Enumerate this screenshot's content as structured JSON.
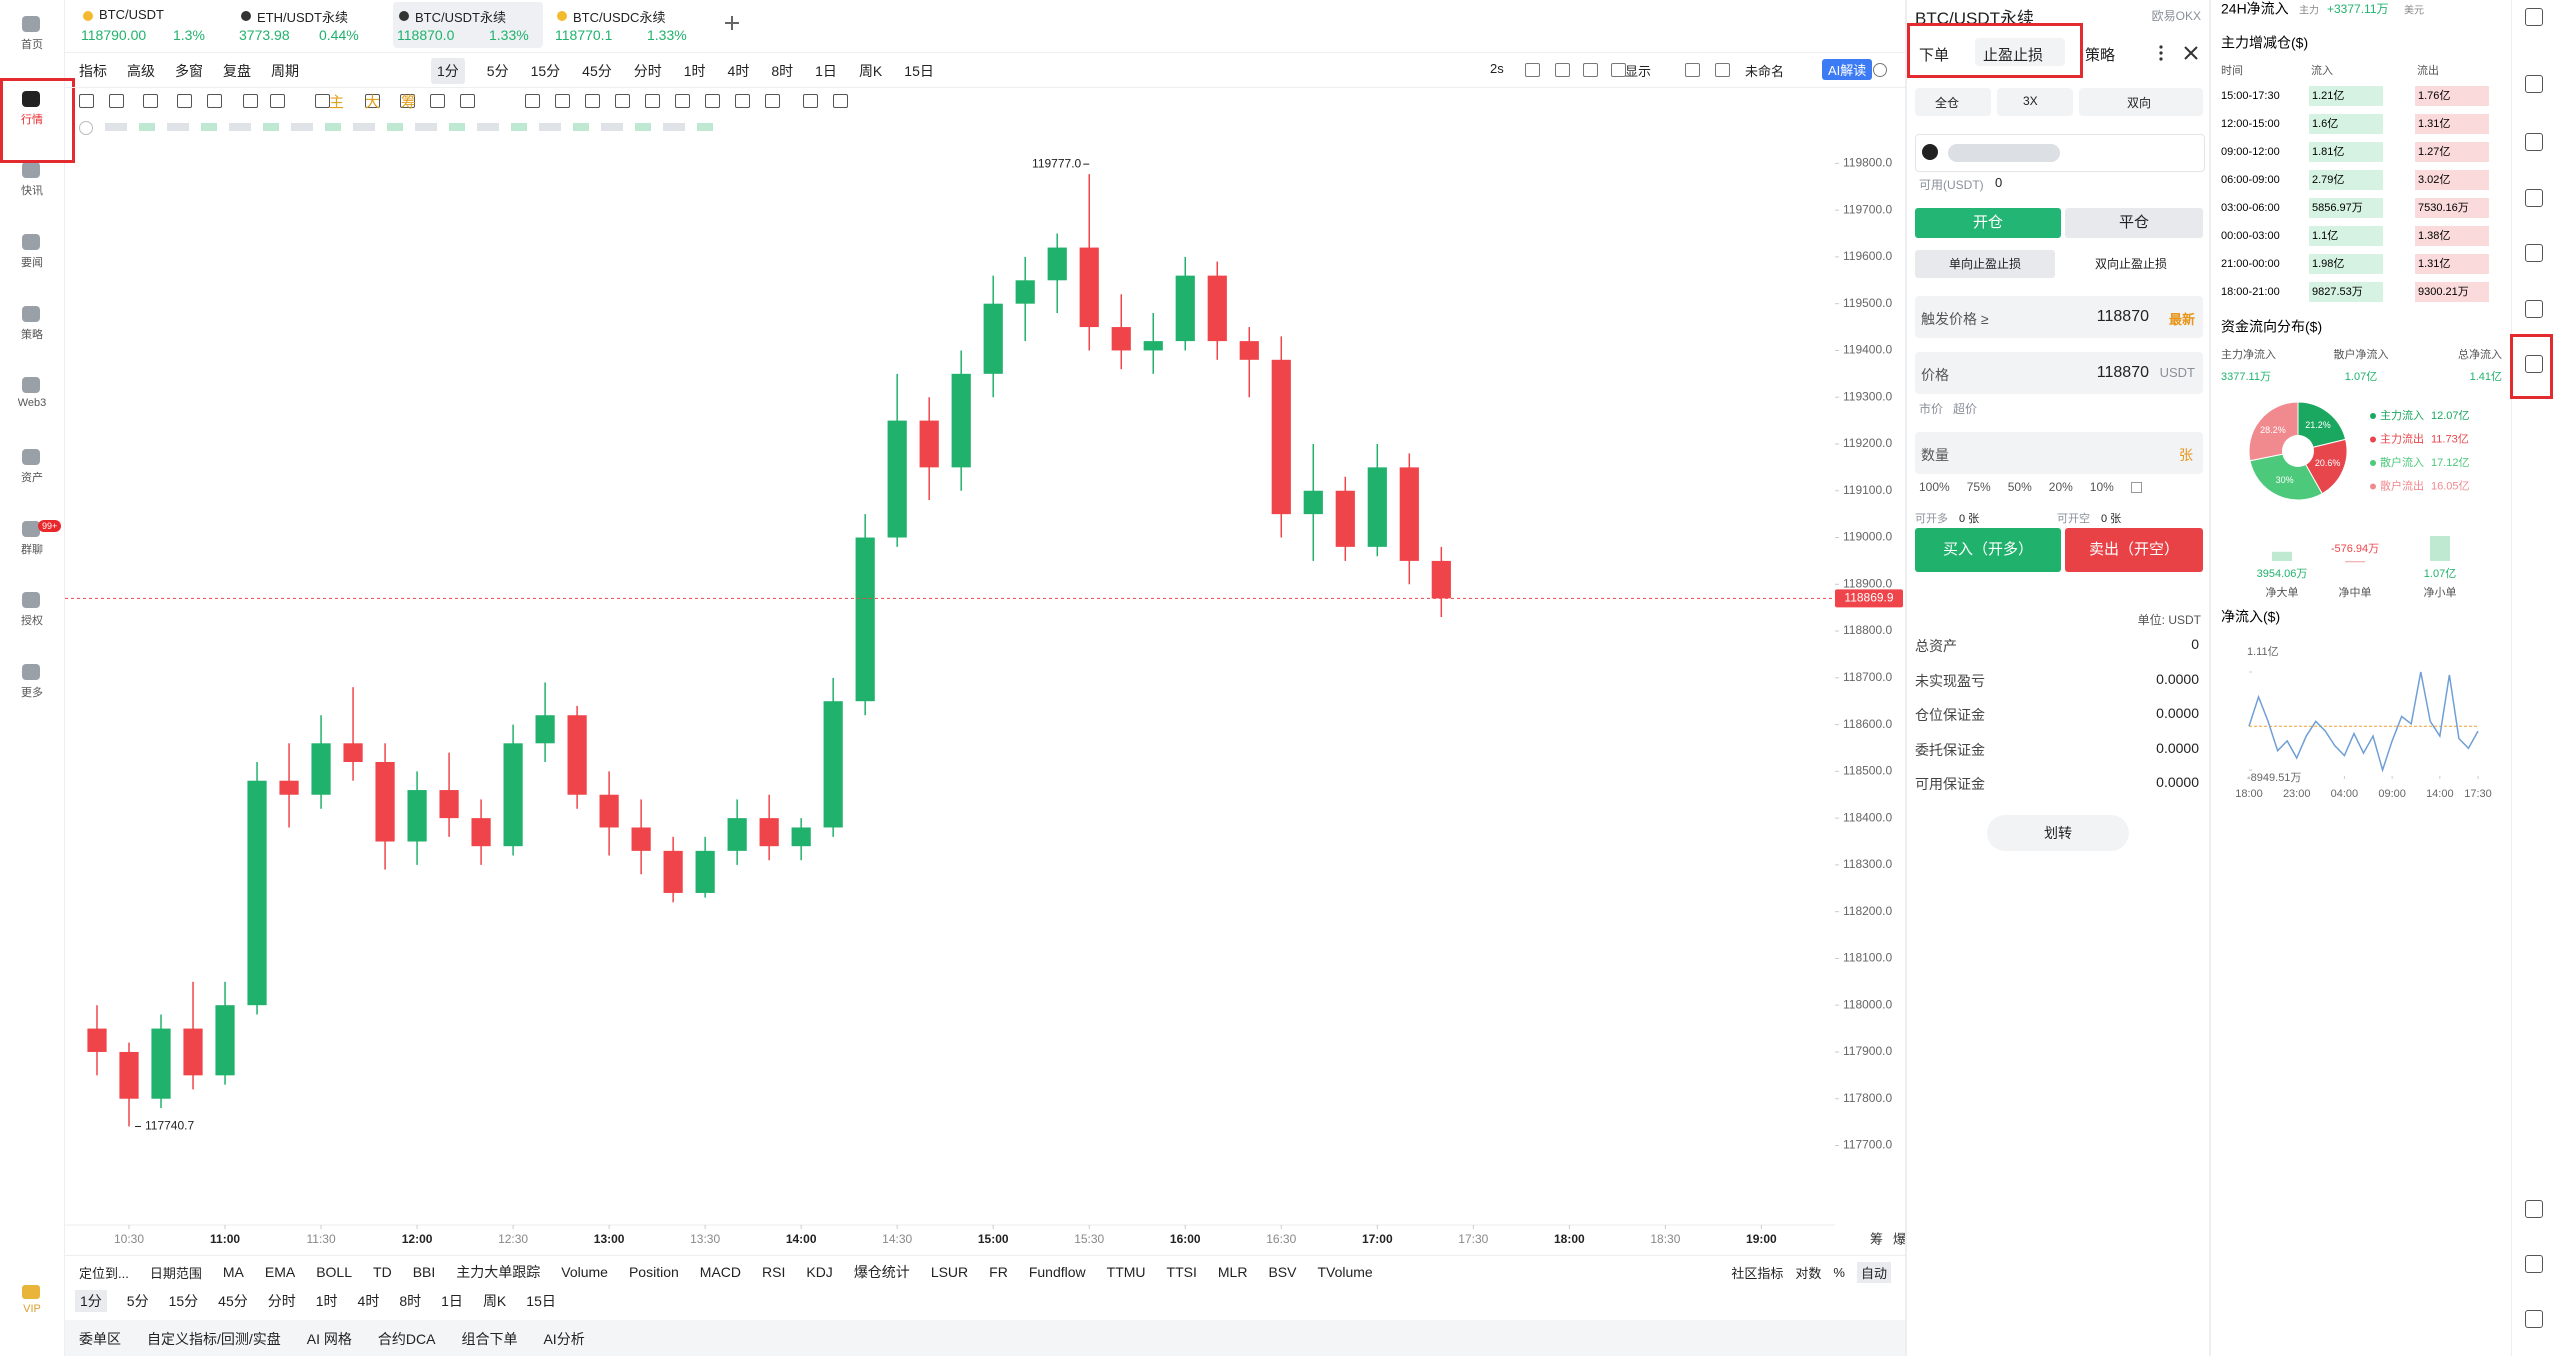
{
  "tabs": [
    {
      "name": "BTC/USDT",
      "price": "118790.00",
      "change": "1.3%"
    },
    {
      "name": "ETH/USDT永续",
      "price": "3773.98",
      "change": "0.44%"
    },
    {
      "name": "BTC/USDT永续",
      "price": "118870.0",
      "change": "1.33%"
    },
    {
      "name": "BTC/USDC永续",
      "price": "118770.1",
      "change": "1.33%"
    }
  ],
  "sidebar": {
    "items": [
      "首页",
      "行情",
      "快讯",
      "要闻",
      "策略",
      "Web3",
      "资产",
      "群聊",
      "授权",
      "更多"
    ],
    "badge": "99+",
    "vip": "VIP"
  },
  "toolbar": {
    "left": [
      "指标",
      "高级",
      "多窗",
      "复盘",
      "周期"
    ],
    "periods": [
      "1分",
      "5分",
      "15分",
      "45分",
      "分时",
      "1时",
      "4时",
      "8时",
      "1日",
      "周K",
      "15日"
    ],
    "right": [
      "2s",
      "显示",
      "未命名",
      "AI解读"
    ],
    "draw_labels": [
      "主",
      "大",
      "筹"
    ]
  },
  "chart_data": [
    {
      "type": "candlestick",
      "up_color": "#20b26c",
      "down_color": "#ef454a",
      "ylim": [
        117530,
        119850
      ],
      "xlim": [
        "10:10",
        "19:23"
      ],
      "yticks": [
        {
          "value": 117700,
          "label": "117700.0"
        },
        {
          "value": 117800,
          "label": "117800.0"
        },
        {
          "value": 117900,
          "label": "117900.0"
        },
        {
          "value": 118000,
          "label": "118000.0"
        },
        {
          "value": 118100,
          "label": "118100.0"
        },
        {
          "value": 118200,
          "label": "118200.0"
        },
        {
          "value": 118300,
          "label": "118300.0"
        },
        {
          "value": 118400,
          "label": "118400.0"
        },
        {
          "value": 118500,
          "label": "118500.0"
        },
        {
          "value": 118600,
          "label": "118600.0"
        },
        {
          "value": 118700,
          "label": "118700.0"
        },
        {
          "value": 118800,
          "label": "118800.0"
        },
        {
          "value": 118900,
          "label": "118900.0"
        },
        {
          "value": 119000,
          "label": "119000.0"
        },
        {
          "value": 119100,
          "label": "119100.0"
        },
        {
          "value": 119200,
          "label": "119200.0"
        },
        {
          "value": 119300,
          "label": "119300.0"
        },
        {
          "value": 119400,
          "label": "119400.0"
        },
        {
          "value": 119500,
          "label": "119500.0"
        },
        {
          "value": 119600,
          "label": "119600.0"
        },
        {
          "value": 119700,
          "label": "119700.0"
        },
        {
          "value": 119800,
          "label": "119800.0"
        }
      ],
      "xticks": [
        "10:30",
        "11:00",
        "11:30",
        "12:00",
        "12:30",
        "13:00",
        "13:30",
        "14:00",
        "14:30",
        "15:00",
        "15:30",
        "16:00",
        "16:30",
        "17:00",
        "17:30",
        "18:00",
        "18:30",
        "19:00"
      ],
      "x": [
        "10:20",
        "10:30",
        "10:40",
        "10:50",
        "11:00",
        "11:10",
        "11:20",
        "11:30",
        "11:40",
        "11:50",
        "12:00",
        "12:10",
        "12:20",
        "12:30",
        "12:40",
        "12:50",
        "13:00",
        "13:10",
        "13:20",
        "13:30",
        "13:40",
        "13:50",
        "14:00",
        "14:10",
        "14:20",
        "14:30",
        "14:40",
        "14:50",
        "15:00",
        "15:10",
        "15:20",
        "15:30",
        "15:40",
        "15:50",
        "16:00",
        "16:10",
        "16:20",
        "16:30",
        "16:40",
        "16:50",
        "17:00",
        "17:10",
        "17:20"
      ],
      "ohlc": [
        [
          117950,
          118000,
          117850,
          117900
        ],
        [
          117900,
          117920,
          117740.7,
          117800
        ],
        [
          117800,
          117980,
          117780,
          117950
        ],
        [
          117950,
          118050,
          117820,
          117850
        ],
        [
          117850,
          118050,
          117830,
          118000
        ],
        [
          118000,
          118520,
          117980,
          118480
        ],
        [
          118480,
          118560,
          118380,
          118450
        ],
        [
          118450,
          118620,
          118420,
          118560
        ],
        [
          118560,
          118680,
          118480,
          118520
        ],
        [
          118520,
          118560,
          118290,
          118350
        ],
        [
          118350,
          118500,
          118300,
          118460
        ],
        [
          118460,
          118540,
          118360,
          118400
        ],
        [
          118400,
          118440,
          118300,
          118340
        ],
        [
          118340,
          118600,
          118320,
          118560
        ],
        [
          118560,
          118690,
          118520,
          118620
        ],
        [
          118620,
          118640,
          118420,
          118450
        ],
        [
          118450,
          118500,
          118320,
          118380
        ],
        [
          118380,
          118440,
          118280,
          118330
        ],
        [
          118330,
          118360,
          118220,
          118240
        ],
        [
          118240,
          118360,
          118230,
          118330
        ],
        [
          118330,
          118440,
          118300,
          118400
        ],
        [
          118400,
          118450,
          118310,
          118340
        ],
        [
          118340,
          118400,
          118310,
          118380
        ],
        [
          118380,
          118700,
          118360,
          118650
        ],
        [
          118650,
          119050,
          118620,
          119000
        ],
        [
          119000,
          119350,
          118980,
          119250
        ],
        [
          119250,
          119300,
          119080,
          119150
        ],
        [
          119150,
          119400,
          119100,
          119350
        ],
        [
          119350,
          119560,
          119300,
          119500
        ],
        [
          119500,
          119600,
          119420,
          119550
        ],
        [
          119550,
          119650,
          119480,
          119620
        ],
        [
          119620,
          119777,
          119400,
          119450
        ],
        [
          119450,
          119520,
          119360,
          119400
        ],
        [
          119400,
          119480,
          119350,
          119420
        ],
        [
          119420,
          119600,
          119400,
          119560
        ],
        [
          119560,
          119590,
          119380,
          119420
        ],
        [
          119420,
          119450,
          119300,
          119380
        ],
        [
          119380,
          119430,
          119000,
          119050
        ],
        [
          119050,
          119200,
          118950,
          119100
        ],
        [
          119100,
          119130,
          118950,
          118980
        ],
        [
          118980,
          119200,
          118960,
          119150
        ],
        [
          119150,
          119180,
          118900,
          118950
        ],
        [
          118950,
          118980,
          118830,
          118869.9
        ]
      ],
      "annotations": [
        {
          "x": "15:30",
          "value": 119777,
          "label": "119777.0"
        },
        {
          "x": "10:30",
          "value": 117740.7,
          "label": "117740.7"
        }
      ],
      "last_price": {
        "value": 118869.9,
        "label": "118869.9"
      },
      "axis_corner": [
        "筹",
        "爆"
      ]
    },
    {
      "type": "pie",
      "categories": [
        "主力流入",
        "主力流出",
        "散户流入",
        "散户流出"
      ],
      "values": [
        21.2,
        20.6,
        30,
        28.2
      ],
      "value_labels": [
        "21.2%",
        "20.6%",
        "30%",
        "28.2%"
      ],
      "amounts": [
        "12.07亿",
        "11.73亿",
        "17.12亿",
        "16.05亿"
      ],
      "colors": [
        "#1aa760",
        "#e8464d",
        "#4cc97a",
        "#f08a8f"
      ]
    },
    {
      "type": "bar",
      "categories": [
        "净大单",
        "净中单",
        "净小单"
      ],
      "values": [
        39540600,
        -5769400,
        107000000
      ],
      "value_labels": [
        "3954.06万",
        "-576.94万",
        "1.07亿"
      ],
      "colors": [
        "#bfe9d0",
        "#f5b5b8",
        "#bfe9d0"
      ]
    },
    {
      "type": "line",
      "color": "#6f9fd6",
      "x": [
        "18:00",
        "19:00",
        "20:00",
        "21:00",
        "22:00",
        "23:00",
        "00:00",
        "01:00",
        "02:00",
        "03:00",
        "04:00",
        "05:00",
        "06:00",
        "07:00",
        "08:00",
        "09:00",
        "10:00",
        "11:00",
        "12:00",
        "13:00",
        "14:00",
        "15:00",
        "16:00",
        "17:00",
        "17:30"
      ],
      "values": [
        0,
        6000,
        1000,
        -5000,
        -3000,
        -6500,
        -2000,
        1000,
        -1000,
        -4000,
        -6000,
        -1500,
        -5500,
        -2000,
        -8949.51,
        -3000,
        2000,
        500,
        11100,
        1000,
        -2000,
        10500,
        -2500,
        -4500,
        -1000
      ],
      "ylim": [
        -8949.51,
        11100
      ],
      "yticks": [
        {
          "value": 11100,
          "label": "1.11亿"
        },
        {
          "value": -8949.51,
          "label": "-8949.51万"
        }
      ],
      "xticks": [
        "18:00",
        "23:00",
        "04:00",
        "09:00",
        "14:00",
        "17:30"
      ],
      "zero_line": true
    }
  ],
  "bottom": {
    "indicators": [
      "定位到...",
      "日期范围",
      "MA",
      "EMA",
      "BOLL",
      "TD",
      "BBI",
      "主力大单跟踪",
      "Volume",
      "Position",
      "MACD",
      "RSI",
      "KDJ",
      "爆仓统计",
      "LSUR",
      "FR",
      "Fundflow",
      "TTMU",
      "TTSI",
      "MLR",
      "BSV",
      "TVolume"
    ],
    "options": [
      "社区指标",
      "对数",
      "%",
      "自动"
    ],
    "periods": [
      "1分",
      "5分",
      "15分",
      "45分",
      "分时",
      "1时",
      "4时",
      "8时",
      "1日",
      "周K",
      "15日"
    ],
    "tabs": [
      "委单区",
      "自定义指标/回测/实盘",
      "AI 网格",
      "合约DCA",
      "组合下单",
      "AI分析"
    ]
  },
  "order": {
    "title": "BTC/USDT永续",
    "exchange": "欧易OKX",
    "tabs": [
      "下单",
      "止盈止损",
      "策略"
    ],
    "margin": [
      "全仓",
      "3X",
      "双向"
    ],
    "available_label": "可用(USDT)",
    "available": "0",
    "open_close": [
      "开仓",
      "平仓"
    ],
    "tp_sl": [
      "单向止盈止损",
      "双向止盈止损"
    ],
    "trigger_label": "触发价格 ≥",
    "trigger": "118870",
    "trigger_type": "最新",
    "price_label": "价格",
    "price": "118870",
    "price_unit": "USDT",
    "price_types": [
      "市价",
      "超价"
    ],
    "qty_label": "数量",
    "qty_unit": "张",
    "percents": [
      "100%",
      "75%",
      "50%",
      "20%",
      "10%"
    ],
    "can_long": [
      "可开多",
      "0 张"
    ],
    "can_short": [
      "可开空",
      "0 张"
    ],
    "buy": "买入（开多）",
    "sell": "卖出（开空）",
    "unit": "单位: USDT",
    "assets": [
      [
        "总资产",
        "0"
      ],
      [
        "未实现盈亏",
        "0.0000"
      ],
      [
        "仓位保证金",
        "0.0000"
      ],
      [
        "委托保证金",
        "0.0000"
      ],
      [
        "可用保证金",
        "0.0000"
      ]
    ],
    "transfer": "划转"
  },
  "flow": {
    "title": "24H净流入",
    "main_label": "主力",
    "main_value": "+3377.11万",
    "currency": "美元",
    "table_title": "主力增减仓($)",
    "columns": [
      "时间",
      "流入",
      "流出"
    ],
    "rows": [
      [
        "15:00-17:30",
        "1.21亿",
        "1.76亿"
      ],
      [
        "12:00-15:00",
        "1.6亿",
        "1.31亿"
      ],
      [
        "09:00-12:00",
        "1.81亿",
        "1.27亿"
      ],
      [
        "06:00-09:00",
        "2.79亿",
        "3.02亿"
      ],
      [
        "03:00-06:00",
        "5856.97万",
        "7530.16万"
      ],
      [
        "00:00-03:00",
        "1.1亿",
        "1.38亿"
      ],
      [
        "21:00-00:00",
        "1.98亿",
        "1.31亿"
      ],
      [
        "18:00-21:00",
        "9827.53万",
        "9300.21万"
      ]
    ],
    "dist_title": "资金流向分布($)",
    "dist_labels": [
      "主力净流入",
      "散户净流入",
      "总净流入"
    ],
    "dist_values": [
      "3377.11万",
      "1.07亿",
      "1.41亿"
    ],
    "net_title": "净流入($)"
  }
}
